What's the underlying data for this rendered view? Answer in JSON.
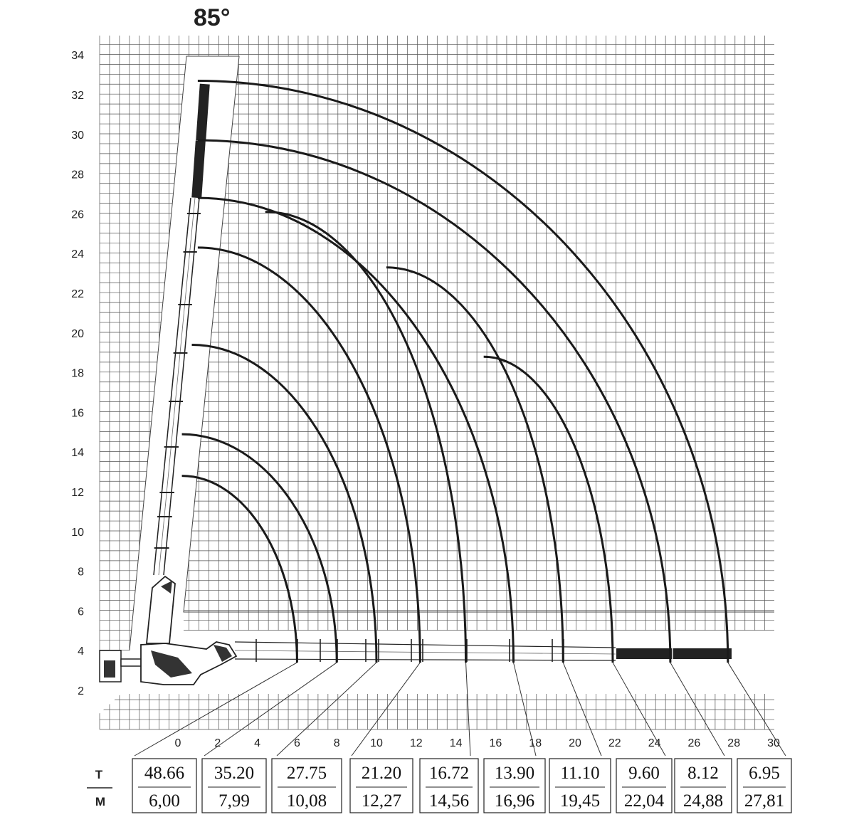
{
  "title": "85°",
  "chart_data": {
    "type": "diagram",
    "subject": "crane load chart",
    "x_ticks": [
      "0",
      "2",
      "4",
      "6",
      "8",
      "10",
      "12",
      "14",
      "16",
      "18",
      "20",
      "22",
      "24",
      "26",
      "28",
      "30"
    ],
    "y_ticks": [
      "2",
      "4",
      "6",
      "8",
      "10",
      "12",
      "14",
      "16",
      "18",
      "20",
      "22",
      "24",
      "26",
      "28",
      "30",
      "32",
      "34"
    ],
    "xlim": [
      -4,
      30
    ],
    "ylim": [
      0,
      35
    ],
    "table": {
      "row_labels": {
        "top": "T",
        "bottom": "M"
      },
      "columns": [
        {
          "t": "48.66",
          "m": "6,00"
        },
        {
          "t": "35.20",
          "m": "7,99"
        },
        {
          "t": "27.75",
          "m": "10,08"
        },
        {
          "t": "21.20",
          "m": "12,27"
        },
        {
          "t": "16.72",
          "m": "14,56"
        },
        {
          "t": "13.90",
          "m": "16,96"
        },
        {
          "t": "11.10",
          "m": "19,45"
        },
        {
          "t": "9.60",
          "m": "22,04"
        },
        {
          "t": "8.12",
          "m": "24,88"
        },
        {
          "t": "6.95",
          "m": "27,81"
        }
      ]
    },
    "arcs": [
      {
        "top": [
          0.2,
          12.8
        ],
        "end": [
          6.0,
          3.4
        ]
      },
      {
        "top": [
          0.2,
          14.9
        ],
        "end": [
          8.0,
          3.4
        ]
      },
      {
        "top": [
          0.7,
          19.4
        ],
        "end": [
          10.0,
          3.4
        ]
      },
      {
        "top": [
          1.0,
          24.3
        ],
        "end": [
          12.2,
          3.4
        ]
      },
      {
        "top": [
          4.4,
          26.1
        ],
        "end": [
          14.5,
          3.4
        ]
      },
      {
        "top": [
          1.0,
          26.8
        ],
        "end": [
          16.9,
          3.4
        ]
      },
      {
        "top": [
          10.5,
          23.3
        ],
        "end": [
          19.4,
          3.4
        ]
      },
      {
        "top": [
          15.4,
          18.8
        ],
        "end": [
          21.9,
          3.4
        ]
      },
      {
        "top": [
          1.0,
          29.7
        ],
        "end": [
          24.8,
          3.4
        ]
      },
      {
        "top": [
          1.0,
          32.7
        ],
        "end": [
          27.7,
          3.4
        ]
      }
    ]
  }
}
